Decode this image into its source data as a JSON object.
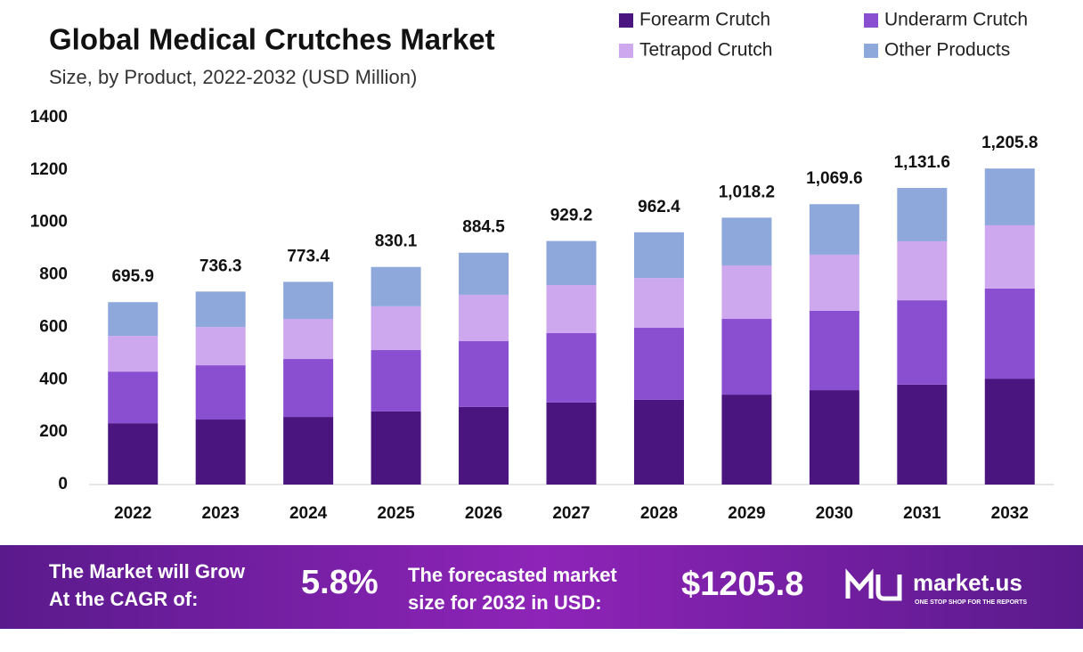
{
  "chart_data": {
    "type": "stacked_bar",
    "title": "Global Medical Crutches Market",
    "subtitle": "Size, by Product, 2022-2032 (USD Million)",
    "categories": [
      "2022",
      "2023",
      "2024",
      "2025",
      "2026",
      "2027",
      "2028",
      "2029",
      "2030",
      "2031",
      "2032"
    ],
    "series": [
      {
        "name": "Forearm Crutch",
        "color": "#4b1580",
        "values": [
          234,
          248,
          258,
          279,
          296,
          313,
          323,
          343,
          360,
          381,
          404
        ]
      },
      {
        "name": "Underarm Crutch",
        "color": "#8a4fd0",
        "values": [
          197,
          207,
          221,
          234,
          251,
          265,
          275,
          289,
          303,
          322,
          344
        ]
      },
      {
        "name": "Tetrapod Crutch",
        "color": "#cda8ee",
        "values": [
          136,
          146,
          153,
          167,
          177,
          183,
          190,
          204,
          214,
          225,
          241
        ]
      },
      {
        "name": "Other Products",
        "color": "#8fa8dc",
        "values": [
          128.9,
          135.3,
          141.4,
          150.1,
          160.5,
          168.2,
          174.4,
          182.2,
          192.6,
          203.6,
          216.8
        ]
      }
    ],
    "totals": [
      695.9,
      736.3,
      773.4,
      830.1,
      884.5,
      929.2,
      962.4,
      1018.2,
      1069.6,
      1131.6,
      1205.8
    ],
    "total_labels": [
      "695.9",
      "736.3",
      "773.4",
      "830.1",
      "884.5",
      "929.2",
      "962.4",
      "1,018.2",
      "1,069.6",
      "1,131.6",
      "1,205.8"
    ],
    "ylim": [
      0,
      1400
    ],
    "yticks": [
      0,
      200,
      400,
      600,
      800,
      1000,
      1200,
      1400
    ],
    "grid": false
  },
  "footer": {
    "cagr_text_1": "The Market will Grow",
    "cagr_text_2": "At the CAGR of:",
    "cagr": "5.8%",
    "forecast_text_1": "The forecasted market",
    "forecast_text_2": "size for 2032 in USD:",
    "forecast": "$1205.8",
    "brand": "market.us",
    "tagline": "ONE STOP SHOP FOR THE REPORTS"
  }
}
